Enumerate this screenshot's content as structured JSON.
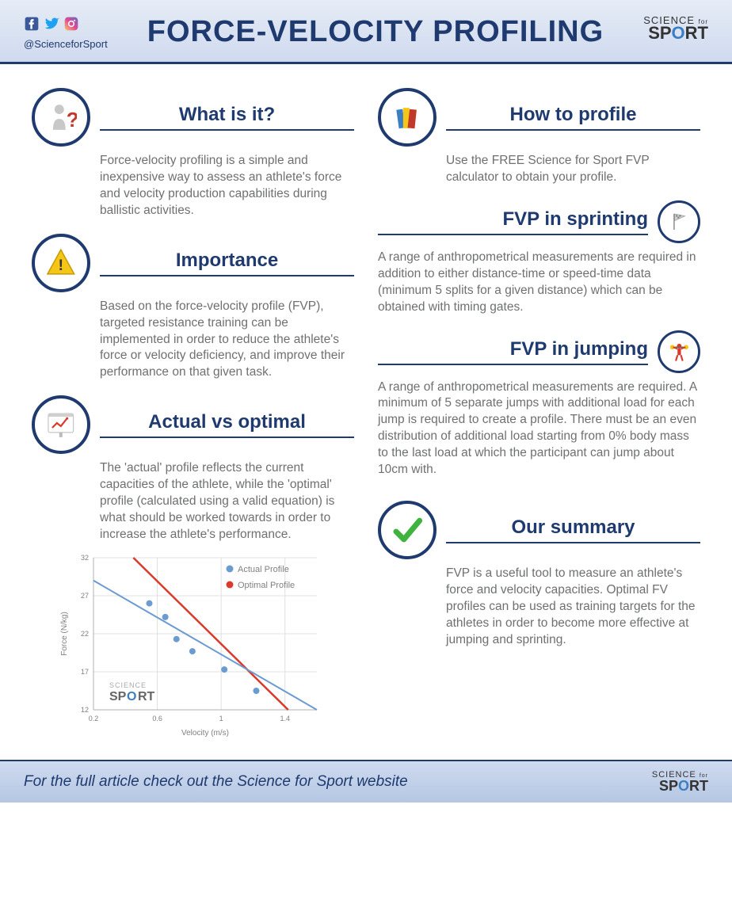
{
  "header": {
    "title": "FORCE-VELOCITY PROFILING",
    "handle": "@ScienceforSport",
    "logo_top": "SCIENCE",
    "logo_for": "for",
    "logo_bottom": "SPORT"
  },
  "social": {
    "facebook_color": "#3b5998",
    "twitter_color": "#1da1f2",
    "instagram_color": "#c13584"
  },
  "sections": {
    "what": {
      "title": "What is it?",
      "body": "Force-velocity profiling is a simple and inexpensive way to assess an athlete's force and velocity production capabilities during ballistic activities."
    },
    "importance": {
      "title": "Importance",
      "body": "Based on the force-velocity profile (FVP), targeted resistance training can be implemented in order to reduce the athlete's force or velocity deficiency, and improve their performance on that given task."
    },
    "actual": {
      "title": "Actual vs optimal",
      "body": "The 'actual' profile reflects the current capacities of the athlete, while the 'optimal' profile (calculated using a valid equation) is what should be worked towards in order to increase the athlete's performance."
    },
    "howto": {
      "title": "How to profile",
      "body": "Use the FREE Science for Sport FVP calculator to obtain your profile."
    },
    "sprint": {
      "title": "FVP in sprinting",
      "body": "A range of anthropometrical measurements are required in addition to either distance-time or speed-time data (minimum 5 splits for a given distance) which can be obtained with timing gates."
    },
    "jump": {
      "title": "FVP in jumping",
      "body": "A range of anthropometrical measurements are required. A minimum of 5 separate jumps with additional load for each jump is required to create a profile. There must be an even distribution of additional load starting from 0% body mass to the last load at which the participant can jump about 10cm with."
    },
    "summary": {
      "title": "Our summary",
      "body": "FVP is a useful tool to measure an athlete's force and velocity capacities. Optimal FV profiles can be used as training targets for the athletes in order to become more effective at jumping and sprinting."
    }
  },
  "chart": {
    "type": "scatter-line",
    "xlabel": "Velocity (m/s)",
    "ylabel": "Force (N/kg)",
    "xlim": [
      0.2,
      1.6
    ],
    "ylim": [
      12,
      32
    ],
    "xticks": [
      0.2,
      0.6,
      1,
      1.4
    ],
    "yticks": [
      12,
      17,
      22,
      27,
      32
    ],
    "background_color": "#ffffff",
    "grid_color": "#e0e0e0",
    "axis_color": "#b0b0b0",
    "label_color": "#808080",
    "label_fontsize": 10,
    "tick_fontsize": 9,
    "legend": {
      "actual": {
        "label": "Actual Profile",
        "color": "#6b9bd1",
        "marker": "circle"
      },
      "optimal": {
        "label": "Optimal Profile",
        "color": "#d93a2b",
        "marker": "circle"
      }
    },
    "actual_points": [
      {
        "x": 0.55,
        "y": 26
      },
      {
        "x": 0.65,
        "y": 24.2
      },
      {
        "x": 0.72,
        "y": 21.3
      },
      {
        "x": 0.82,
        "y": 19.7
      },
      {
        "x": 1.02,
        "y": 17.3
      },
      {
        "x": 1.22,
        "y": 14.5
      }
    ],
    "actual_line": {
      "x1": 0.2,
      "y1": 29,
      "x2": 1.6,
      "y2": 12,
      "color": "#6b9bd1",
      "width": 2
    },
    "optimal_line": {
      "x1": 0.45,
      "y1": 32,
      "x2": 1.42,
      "y2": 12,
      "color": "#d93a2b",
      "width": 2.5
    }
  },
  "footer": {
    "text": "For the full article check out the Science for Sport website"
  },
  "colors": {
    "primary": "#1e3a6e",
    "text": "#6e7071",
    "header_bg_top": "#e6ecf6",
    "header_bg_bottom": "#cfdaef"
  }
}
